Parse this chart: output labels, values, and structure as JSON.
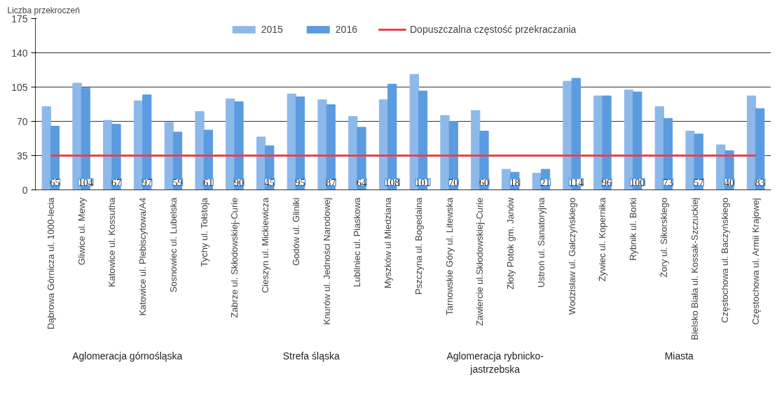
{
  "chart_data": {
    "type": "bar",
    "ylabel": "Liczba przekroczeń",
    "categories": [
      "Dąbrowa Górnicza ul. 1000-lecia",
      "Gliwice ul. Mewy",
      "Katowice ul. Kossutha",
      "Katowice ul. Plebiscytowa/A4",
      "Sosnowiec ul. Lubelska",
      "Tychy ul. Tołstoja",
      "Zabrze ul. Skłodowskiej-Curie",
      "Cieszyn ul. Mickiewicza",
      "Godów ul. Gliniki",
      "Knurów ul. Jedności Narodowej",
      "Lubliniec ul. Piaskowa",
      "Myszków ul Miedziana",
      "Pszczyna ul. Bogedaina",
      "Tarnowskie Góry ul. Litewska",
      "Zawiercie ul.Skłodowskiej-Curie",
      "Złoty Potok gm. Janów",
      "Ustroń ul. Sanatoryjna",
      "Wodzisław ul. Gałczyńskiego",
      "Żywiec ul. Kopernika",
      "Rybnik ul. Borki",
      "Żory ul. Sikorskiego",
      "Bielsko Biała ul. Kossak-Szczuckiej",
      "Częstochowa ul. Baczyńskiego",
      "Częstochowa ul. Armii Krajowej"
    ],
    "series": [
      {
        "name": "2015",
        "color": "#8db9ea",
        "values": [
          85,
          109,
          71,
          91,
          69,
          80,
          93,
          54,
          98,
          92,
          75,
          92,
          118,
          76,
          81,
          21,
          17,
          111,
          96,
          102,
          85,
          60,
          46,
          96
        ]
      },
      {
        "name": "2016",
        "color": "#5b9be0",
        "values": [
          65,
          104,
          67,
          97,
          59,
          61,
          90,
          45,
          95,
          87,
          64,
          108,
          101,
          70,
          60,
          18,
          21,
          114,
          96,
          100,
          73,
          57,
          40,
          83
        ],
        "value_labels": [
          "65",
          "104",
          "67",
          "97",
          "59",
          "61",
          "90",
          "45",
          "95",
          "87",
          "64",
          "108",
          "101",
          "70",
          "60",
          "18",
          "21",
          "114",
          "96",
          "100",
          "73",
          "57",
          "40",
          "83"
        ]
      }
    ],
    "ylim": [
      0,
      175
    ],
    "yticks": [
      0,
      35,
      70,
      105,
      140,
      175
    ],
    "grid": "y",
    "legend": "top",
    "ref_lines": [
      {
        "axis": "y",
        "value": 35,
        "label": "Dopuszczalna częstość przekraczania",
        "color": "#e8414f"
      }
    ],
    "annotations": [
      "Aglomeracja górnośląska",
      "Strefa śląska",
      "Aglomeracja rybnicko-jastrzebska",
      "Miasta"
    ]
  }
}
